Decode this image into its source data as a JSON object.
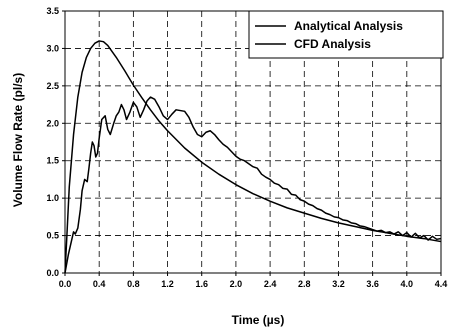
{
  "chart_data": {
    "type": "line",
    "title": "",
    "xlabel": "Time (µs)",
    "ylabel": "Volume Flow Rate (pl/s)",
    "xlim": [
      0,
      4.4
    ],
    "ylim": [
      0,
      3.5
    ],
    "x_ticks": [
      "0.0",
      "0.4",
      "0.8",
      "1.2",
      "1.6",
      "2.0",
      "2.4",
      "2.8",
      "3.2",
      "3.6",
      "4.0",
      "4.4"
    ],
    "y_ticks": [
      "0.0",
      "0.5",
      "1.0",
      "1.5",
      "2.0",
      "2.5",
      "3.0",
      "3.5"
    ],
    "grid": true,
    "grid_style": "dashed",
    "legend_position": "top-right",
    "series": [
      {
        "name": "Analytical Analysis",
        "color": "#000000",
        "points": [
          [
            0.0,
            0.0
          ],
          [
            0.02,
            0.45
          ],
          [
            0.05,
            1.15
          ],
          [
            0.1,
            1.85
          ],
          [
            0.15,
            2.35
          ],
          [
            0.2,
            2.68
          ],
          [
            0.25,
            2.88
          ],
          [
            0.3,
            3.0
          ],
          [
            0.35,
            3.07
          ],
          [
            0.4,
            3.1
          ],
          [
            0.45,
            3.09
          ],
          [
            0.5,
            3.04
          ],
          [
            0.6,
            2.88
          ],
          [
            0.7,
            2.7
          ],
          [
            0.8,
            2.51
          ],
          [
            0.9,
            2.34
          ],
          [
            1.0,
            2.18
          ],
          [
            1.1,
            2.03
          ],
          [
            1.2,
            1.9
          ],
          [
            1.4,
            1.67
          ],
          [
            1.6,
            1.48
          ],
          [
            1.8,
            1.32
          ],
          [
            2.0,
            1.18
          ],
          [
            2.2,
            1.06
          ],
          [
            2.4,
            0.96
          ],
          [
            2.6,
            0.87
          ],
          [
            2.8,
            0.8
          ],
          [
            3.0,
            0.73
          ],
          [
            3.2,
            0.67
          ],
          [
            3.4,
            0.62
          ],
          [
            3.6,
            0.57
          ],
          [
            3.8,
            0.53
          ],
          [
            4.0,
            0.49
          ],
          [
            4.2,
            0.46
          ],
          [
            4.4,
            0.42
          ]
        ]
      },
      {
        "name": "CFD Analysis",
        "color": "#000000",
        "points": [
          [
            0.0,
            0.0
          ],
          [
            0.04,
            0.25
          ],
          [
            0.08,
            0.45
          ],
          [
            0.1,
            0.55
          ],
          [
            0.12,
            0.52
          ],
          [
            0.15,
            0.6
          ],
          [
            0.18,
            0.85
          ],
          [
            0.2,
            1.1
          ],
          [
            0.23,
            1.25
          ],
          [
            0.26,
            1.22
          ],
          [
            0.28,
            1.4
          ],
          [
            0.3,
            1.6
          ],
          [
            0.32,
            1.75
          ],
          [
            0.34,
            1.7
          ],
          [
            0.36,
            1.55
          ],
          [
            0.38,
            1.6
          ],
          [
            0.4,
            1.8
          ],
          [
            0.43,
            2.05
          ],
          [
            0.47,
            2.1
          ],
          [
            0.5,
            1.92
          ],
          [
            0.53,
            1.85
          ],
          [
            0.57,
            2.0
          ],
          [
            0.6,
            2.1
          ],
          [
            0.63,
            2.15
          ],
          [
            0.66,
            2.25
          ],
          [
            0.69,
            2.18
          ],
          [
            0.72,
            2.05
          ],
          [
            0.76,
            2.15
          ],
          [
            0.8,
            2.28
          ],
          [
            0.84,
            2.22
          ],
          [
            0.88,
            2.08
          ],
          [
            0.92,
            2.18
          ],
          [
            0.96,
            2.3
          ],
          [
            1.0,
            2.35
          ],
          [
            1.05,
            2.32
          ],
          [
            1.1,
            2.22
          ],
          [
            1.15,
            2.1
          ],
          [
            1.2,
            2.05
          ],
          [
            1.25,
            2.12
          ],
          [
            1.3,
            2.18
          ],
          [
            1.35,
            2.17
          ],
          [
            1.4,
            2.16
          ],
          [
            1.45,
            2.08
          ],
          [
            1.5,
            1.95
          ],
          [
            1.55,
            1.85
          ],
          [
            1.6,
            1.82
          ],
          [
            1.65,
            1.88
          ],
          [
            1.7,
            1.9
          ],
          [
            1.75,
            1.85
          ],
          [
            1.8,
            1.78
          ],
          [
            1.85,
            1.72
          ],
          [
            1.9,
            1.68
          ],
          [
            1.95,
            1.62
          ],
          [
            2.0,
            1.56
          ],
          [
            2.05,
            1.52
          ],
          [
            2.1,
            1.5
          ],
          [
            2.15,
            1.46
          ],
          [
            2.2,
            1.42
          ],
          [
            2.25,
            1.4
          ],
          [
            2.3,
            1.32
          ],
          [
            2.35,
            1.28
          ],
          [
            2.4,
            1.25
          ],
          [
            2.45,
            1.2
          ],
          [
            2.5,
            1.18
          ],
          [
            2.55,
            1.13
          ],
          [
            2.6,
            1.12
          ],
          [
            2.65,
            1.05
          ],
          [
            2.7,
            1.04
          ],
          [
            2.75,
            0.98
          ],
          [
            2.8,
            0.96
          ],
          [
            2.85,
            0.92
          ],
          [
            2.9,
            0.9
          ],
          [
            2.95,
            0.86
          ],
          [
            3.0,
            0.84
          ],
          [
            3.05,
            0.8
          ],
          [
            3.1,
            0.78
          ],
          [
            3.15,
            0.75
          ],
          [
            3.2,
            0.74
          ],
          [
            3.25,
            0.71
          ],
          [
            3.3,
            0.7
          ],
          [
            3.35,
            0.67
          ],
          [
            3.4,
            0.66
          ],
          [
            3.45,
            0.63
          ],
          [
            3.5,
            0.62
          ],
          [
            3.55,
            0.6
          ],
          [
            3.6,
            0.58
          ],
          [
            3.65,
            0.56
          ],
          [
            3.7,
            0.57
          ],
          [
            3.75,
            0.54
          ],
          [
            3.8,
            0.55
          ],
          [
            3.85,
            0.52
          ],
          [
            3.9,
            0.55
          ],
          [
            3.95,
            0.5
          ],
          [
            4.0,
            0.54
          ],
          [
            4.05,
            0.48
          ],
          [
            4.1,
            0.53
          ],
          [
            4.15,
            0.47
          ],
          [
            4.2,
            0.5
          ],
          [
            4.25,
            0.44
          ],
          [
            4.3,
            0.49
          ],
          [
            4.35,
            0.45
          ],
          [
            4.4,
            0.46
          ]
        ]
      }
    ]
  }
}
